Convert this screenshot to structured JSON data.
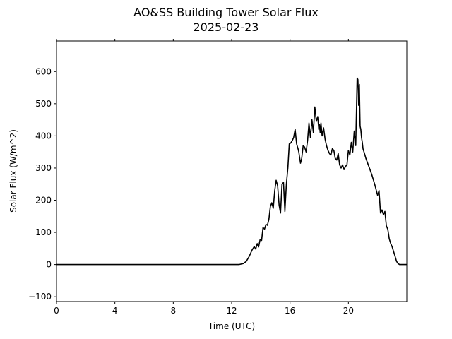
{
  "chart_data": {
    "type": "line",
    "title": "AO&SS Building Tower Solar Flux",
    "subtitle": "2025-02-23",
    "xlabel": "Time (UTC)",
    "ylabel": "Solar Flux (W/m^2)",
    "xlim": [
      0,
      24
    ],
    "ylim": [
      -115,
      695
    ],
    "xticks": [
      0,
      4,
      8,
      12,
      16,
      20
    ],
    "xtick_labels": [
      "0",
      "4",
      "8",
      "12",
      "16",
      "20"
    ],
    "yticks": [
      -100,
      0,
      100,
      200,
      300,
      400,
      500,
      600
    ],
    "ytick_labels": [
      "−100",
      "0",
      "100",
      "200",
      "300",
      "400",
      "500",
      "600"
    ],
    "ticks_on_top": true,
    "grid": false,
    "line_color": "#000000",
    "series": [
      {
        "x": [
          0,
          12.5,
          12.8,
          13.0,
          13.2,
          13.4,
          13.55,
          13.65,
          13.75,
          13.85,
          13.95,
          14.05,
          14.15,
          14.25,
          14.35,
          14.45,
          14.55,
          14.65,
          14.75,
          14.85,
          14.95,
          15.05,
          15.15,
          15.25,
          15.35,
          15.45,
          15.55,
          15.65,
          15.75,
          15.85,
          15.95,
          16.05,
          16.15,
          16.25,
          16.35,
          16.45,
          16.55,
          16.6,
          16.65,
          16.72,
          16.8,
          16.9,
          17.0,
          17.1,
          17.2,
          17.3,
          17.4,
          17.5,
          17.6,
          17.7,
          17.8,
          17.9,
          17.97,
          18.02,
          18.07,
          18.12,
          18.2,
          18.3,
          18.4,
          18.5,
          18.6,
          18.7,
          18.8,
          18.9,
          19.0,
          19.1,
          19.2,
          19.3,
          19.4,
          19.5,
          19.6,
          19.7,
          19.8,
          19.9,
          20.0,
          20.1,
          20.2,
          20.3,
          20.4,
          20.5,
          20.6,
          20.65,
          20.7,
          20.75,
          20.8,
          20.85,
          20.9,
          20.95,
          21.0,
          21.1,
          21.2,
          21.4,
          21.6,
          21.8,
          22.0,
          22.1,
          22.2,
          22.3,
          22.4,
          22.5,
          22.6,
          22.7,
          22.8,
          22.9,
          23.0,
          23.1,
          23.2,
          23.3,
          23.4,
          23.5,
          23.6,
          23.8,
          24.0
        ],
        "y": [
          0,
          0,
          3,
          10,
          25,
          45,
          56,
          48,
          65,
          55,
          78,
          75,
          115,
          110,
          125,
          122,
          140,
          180,
          192,
          175,
          230,
          262,
          245,
          185,
          160,
          250,
          255,
          165,
          250,
          300,
          375,
          378,
          385,
          395,
          420,
          375,
          360,
          350,
          335,
          315,
          330,
          370,
          365,
          350,
          385,
          440,
          395,
          450,
          410,
          490,
          445,
          460,
          420,
          435,
          410,
          440,
          400,
          425,
          390,
          370,
          355,
          345,
          340,
          360,
          355,
          330,
          325,
          345,
          310,
          300,
          310,
          295,
          305,
          310,
          355,
          340,
          380,
          350,
          415,
          370,
          580,
          575,
          495,
          560,
          430,
          420,
          395,
          380,
          360,
          345,
          330,
          305,
          280,
          250,
          215,
          230,
          160,
          170,
          155,
          165,
          120,
          110,
          80,
          65,
          55,
          40,
          25,
          10,
          3,
          0,
          0,
          0,
          0
        ]
      }
    ]
  }
}
